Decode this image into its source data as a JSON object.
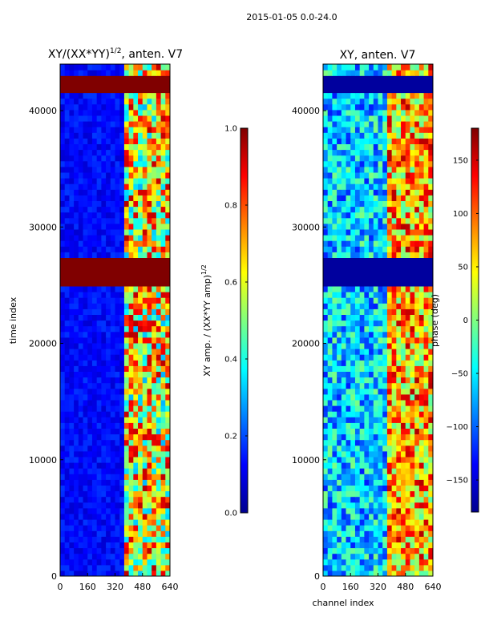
{
  "figure": {
    "suptitle": "2015-01-05 0.0-24.0",
    "shared_ylabel": "time index",
    "shared_xlabel": "channel index"
  },
  "colors": {
    "jet_low": "#00008f",
    "jet_mid": "#7fff7f",
    "jet_high": "#7f0000",
    "frame": "#000000"
  },
  "chart_data": [
    {
      "type": "heatmap",
      "title_main": "XY/(XX*YY)",
      "title_exp": "1/2",
      "title_tail": ", anten. V7",
      "xlim": [
        0,
        640
      ],
      "ylim": [
        0,
        44000
      ],
      "xticks": [
        0,
        160,
        320,
        480,
        640
      ],
      "yticks": [
        0,
        10000,
        20000,
        30000,
        40000
      ],
      "colorbar": {
        "label_main": "XY amp. / (XX*YY amp)",
        "label_exp": "1/2",
        "range": [
          0.0,
          1.0
        ],
        "ticks": [
          "0.0",
          "0.2",
          "0.4",
          "0.6",
          "0.8",
          "1.0"
        ],
        "tick_values": [
          0.0,
          0.2,
          0.4,
          0.6,
          0.8,
          1.0
        ]
      },
      "saturated_time_bands": [
        [
          41800,
          43000
        ],
        [
          25000,
          27600
        ]
      ],
      "active_channel_band": [
        380,
        640
      ]
    },
    {
      "type": "heatmap",
      "title": "XY, anten. V7",
      "xlim": [
        0,
        640
      ],
      "ylim": [
        0,
        44000
      ],
      "xticks": [
        0,
        160,
        320,
        480,
        640
      ],
      "yticks": [
        0,
        10000,
        20000,
        30000,
        40000
      ],
      "colorbar": {
        "label": "phase (deg)",
        "range": [
          -180,
          180
        ],
        "ticks": [
          "−150",
          "−100",
          "−50",
          "0",
          "50",
          "100",
          "150"
        ],
        "tick_values": [
          -150,
          -100,
          -50,
          0,
          50,
          100,
          150
        ]
      },
      "low_value_time_bands": [
        [
          41800,
          43000
        ],
        [
          25000,
          27600
        ]
      ],
      "active_channel_band": [
        380,
        640
      ]
    }
  ]
}
